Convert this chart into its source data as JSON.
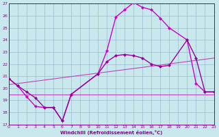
{
  "xlabel": "Windchill (Refroidissement éolien,°C)",
  "background_color": "#c8e8ee",
  "xlim": [
    0,
    23
  ],
  "ylim": [
    17,
    27
  ],
  "xticks": [
    0,
    1,
    2,
    3,
    4,
    5,
    6,
    7,
    8,
    9,
    10,
    11,
    12,
    13,
    14,
    15,
    16,
    17,
    18,
    19,
    20,
    21,
    22,
    23
  ],
  "yticks": [
    17,
    18,
    19,
    20,
    21,
    22,
    23,
    24,
    25,
    26,
    27
  ],
  "line_color": "#aa00aa",
  "series": [
    {
      "name": "jagged_peak",
      "x": [
        0,
        1,
        2,
        3,
        4,
        5,
        6,
        7,
        10,
        11,
        12,
        13,
        14,
        15,
        16,
        17,
        18,
        20,
        21,
        22,
        23
      ],
      "y": [
        20.8,
        20.2,
        19.3,
        18.5,
        18.4,
        18.4,
        17.3,
        19.5,
        21.2,
        23.1,
        25.9,
        26.5,
        27.1,
        26.7,
        26.5,
        25.8,
        25.0,
        24.0,
        20.4,
        19.7,
        19.7
      ],
      "color": "#cc00cc",
      "linewidth": 1.0,
      "marker": "D",
      "markersize": 2.0
    },
    {
      "name": "smooth_upper",
      "x": [
        0,
        1,
        2,
        3,
        4,
        5,
        6,
        7,
        10,
        11,
        12,
        13,
        14,
        15,
        16,
        17,
        18,
        20,
        21,
        22,
        23
      ],
      "y": [
        20.8,
        20.2,
        19.7,
        19.2,
        18.4,
        18.4,
        17.3,
        19.5,
        21.2,
        22.2,
        22.7,
        22.8,
        22.7,
        22.5,
        22.0,
        21.8,
        21.9,
        24.0,
        22.5,
        19.7,
        19.7
      ],
      "color": "#990099",
      "linewidth": 1.0,
      "marker": "D",
      "markersize": 2.0
    },
    {
      "name": "flat_line",
      "x": [
        0,
        23
      ],
      "y": [
        19.5,
        19.5
      ],
      "color": "#bb44bb",
      "linewidth": 0.8,
      "marker": null,
      "markersize": 0
    },
    {
      "name": "diagonal_line",
      "x": [
        0,
        23
      ],
      "y": [
        20.3,
        22.5
      ],
      "color": "#bb44bb",
      "linewidth": 0.8,
      "marker": null,
      "markersize": 0
    }
  ]
}
